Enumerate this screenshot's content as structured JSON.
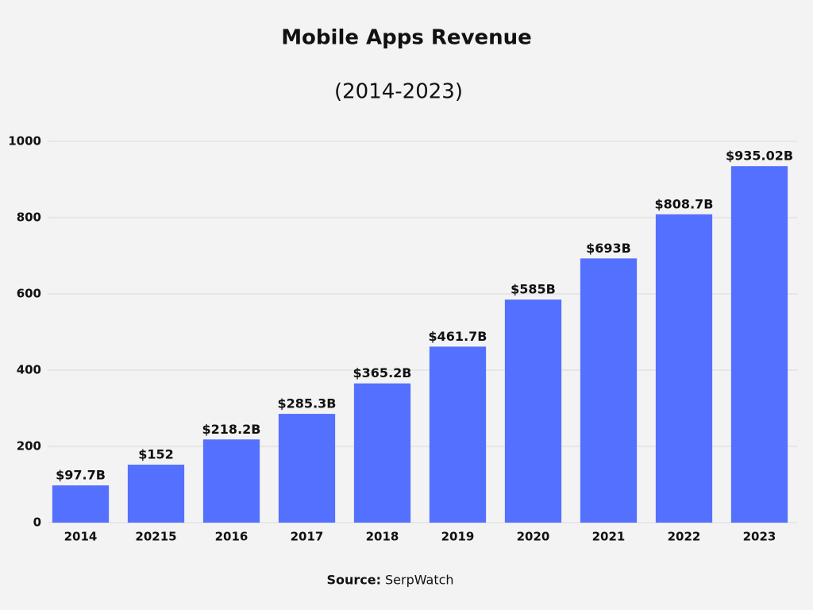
{
  "chart_data": {
    "type": "bar",
    "title": "Mobile Apps Revenue",
    "subtitle": "(2014-2023)",
    "categories": [
      "2014",
      "20215",
      "2016",
      "2017",
      "2018",
      "2019",
      "2020",
      "2021",
      "2022",
      "2023"
    ],
    "values": [
      97.7,
      152,
      218.2,
      285.3,
      365.2,
      461.7,
      585,
      693,
      808.7,
      935.02
    ],
    "value_labels": [
      "$97.7B",
      "$152",
      "$218.2B",
      "$285.3B",
      "$365.2B",
      "$461.7B",
      "$585B",
      "$693B",
      "$808.7B",
      "$935.02B"
    ],
    "color": "#5470ff",
    "ylim": [
      0,
      1000
    ],
    "yticks": [
      0,
      200,
      400,
      600,
      800,
      1000
    ],
    "grid": true,
    "source_label": "Source:",
    "source": "SerpWatch"
  }
}
